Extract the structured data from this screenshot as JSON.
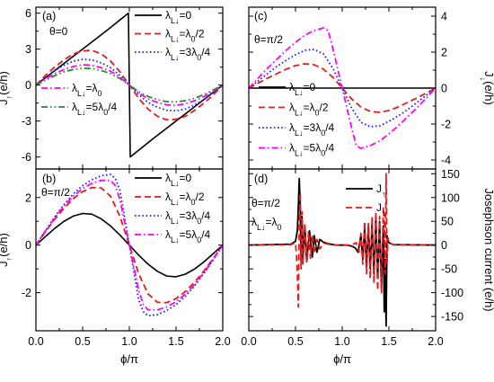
{
  "chart_data": [
    {
      "type": "line",
      "panel_label": "(a)",
      "annotation": [
        "θ=0"
      ],
      "ylabel": "J↑(e/h)",
      "xlim": [
        0,
        2
      ],
      "ylim": [
        -7,
        6.5
      ],
      "xticks": [
        0,
        0.5,
        1,
        1.5,
        2
      ],
      "xtick_labels": [
        "",
        "",
        "",
        "",
        ""
      ],
      "yticks": [
        -6,
        -3,
        0,
        3,
        6
      ],
      "ytick_labels": [
        "-6",
        "-3",
        "0",
        "3",
        "6"
      ],
      "legend": "top-right + lower-left",
      "series": [
        {
          "name": "λL↓=0",
          "color": "#000000",
          "style": "solid",
          "x": [
            0,
            0.25,
            0.5,
            0.75,
            0.99,
            1.01,
            1.25,
            1.5,
            1.75,
            2.0
          ],
          "y": [
            0,
            1.5,
            3.0,
            4.5,
            6.0,
            -6.0,
            -4.5,
            -3.0,
            -1.5,
            0
          ]
        },
        {
          "name": "λL↓=λ0/2",
          "color": "#e41a1c",
          "style": "dash",
          "x": [
            0,
            0.1,
            0.2,
            0.3,
            0.4,
            0.5,
            0.6,
            0.7,
            0.8,
            0.9,
            1.0,
            1.1,
            1.2,
            1.3,
            1.4,
            1.5,
            1.6,
            1.7,
            1.8,
            1.9,
            2.0
          ],
          "y": [
            0,
            0.8,
            1.5,
            2.1,
            2.6,
            2.85,
            2.9,
            2.6,
            2.0,
            1.1,
            0,
            -1.1,
            -2.0,
            -2.6,
            -2.9,
            -2.85,
            -2.6,
            -2.1,
            -1.5,
            -0.8,
            0
          ]
        },
        {
          "name": "λL↓=3λ0/4",
          "color": "#1f1fff",
          "style": "dot",
          "x": [
            0,
            0.1,
            0.2,
            0.3,
            0.4,
            0.5,
            0.6,
            0.7,
            0.8,
            0.9,
            1.0,
            1.1,
            1.2,
            1.3,
            1.4,
            1.5,
            1.6,
            1.7,
            1.8,
            1.9,
            2.0
          ],
          "y": [
            0,
            0.6,
            1.2,
            1.65,
            2.0,
            2.15,
            2.1,
            1.85,
            1.45,
            0.8,
            0,
            -0.8,
            -1.45,
            -1.85,
            -2.1,
            -2.15,
            -2.0,
            -1.65,
            -1.2,
            -0.6,
            0
          ]
        },
        {
          "name": "λL↓=λ0",
          "color": "#ff00ff",
          "style": "dashdot",
          "x": [
            0,
            0.1,
            0.2,
            0.3,
            0.4,
            0.5,
            0.6,
            0.7,
            0.8,
            0.9,
            1.0,
            1.1,
            1.2,
            1.3,
            1.4,
            1.5,
            1.6,
            1.7,
            1.8,
            1.9,
            2.0
          ],
          "y": [
            0,
            0.5,
            0.95,
            1.3,
            1.55,
            1.7,
            1.65,
            1.45,
            1.15,
            0.65,
            0,
            -0.65,
            -1.15,
            -1.45,
            -1.65,
            -1.7,
            -1.55,
            -1.3,
            -0.95,
            -0.5,
            0
          ]
        },
        {
          "name": "λL↓=5λ0/4",
          "color": "#2a8a2a",
          "style": "dashdotdot",
          "x": [
            0,
            0.1,
            0.2,
            0.3,
            0.4,
            0.5,
            0.6,
            0.7,
            0.8,
            0.9,
            1.0,
            1.1,
            1.2,
            1.3,
            1.4,
            1.5,
            1.6,
            1.7,
            1.8,
            1.9,
            2.0
          ],
          "y": [
            0,
            0.4,
            0.78,
            1.1,
            1.3,
            1.4,
            1.38,
            1.22,
            0.95,
            0.55,
            0,
            -0.55,
            -0.95,
            -1.22,
            -1.38,
            -1.4,
            -1.3,
            -1.1,
            -0.78,
            -0.4,
            0
          ]
        }
      ]
    },
    {
      "type": "line",
      "panel_label": "(c)",
      "annotation": [
        "θ=π/2"
      ],
      "ylabel": "J↓(e/h)",
      "xlim": [
        0,
        2
      ],
      "ylim": [
        -4.5,
        4.5
      ],
      "xticks": [
        0,
        0.5,
        1,
        1.5,
        2
      ],
      "xtick_labels": [
        "",
        "",
        "",
        "",
        ""
      ],
      "yticks": [
        -4,
        -2,
        0,
        2,
        4
      ],
      "ytick_labels": [
        "-4",
        "-2",
        "0",
        "2",
        "4"
      ],
      "legend": "lower-left",
      "series": [
        {
          "name": "λL↓=0",
          "color": "#000000",
          "style": "solid",
          "x": [
            0,
            2
          ],
          "y": [
            0,
            0
          ]
        },
        {
          "name": "λL↓=λ0/2",
          "color": "#e41a1c",
          "style": "dash",
          "x": [
            0,
            0.1,
            0.2,
            0.3,
            0.4,
            0.5,
            0.6,
            0.7,
            0.8,
            0.9,
            1.0,
            1.1,
            1.2,
            1.3,
            1.4,
            1.5,
            1.6,
            1.7,
            1.8,
            1.9,
            2.0
          ],
          "y": [
            0,
            0.28,
            0.55,
            0.8,
            1.05,
            1.25,
            1.35,
            1.3,
            1.05,
            0.6,
            0,
            -0.6,
            -1.05,
            -1.3,
            -1.35,
            -1.25,
            -1.05,
            -0.8,
            -0.55,
            -0.28,
            0
          ]
        },
        {
          "name": "λL↓=3λ0/4",
          "color": "#1f1fff",
          "style": "dot",
          "x": [
            0,
            0.1,
            0.2,
            0.3,
            0.4,
            0.5,
            0.6,
            0.7,
            0.8,
            0.9,
            1.0,
            1.1,
            1.2,
            1.3,
            1.4,
            1.5,
            1.6,
            1.7,
            1.8,
            1.9,
            2.0
          ],
          "y": [
            0,
            0.4,
            0.8,
            1.2,
            1.55,
            1.85,
            2.1,
            2.15,
            1.9,
            1.1,
            0,
            -1.1,
            -1.9,
            -2.15,
            -2.1,
            -1.85,
            -1.55,
            -1.2,
            -0.8,
            -0.4,
            0
          ]
        },
        {
          "name": "λL↓=5λ0/4",
          "color": "#ff00ff",
          "style": "dashdot",
          "x": [
            0,
            0.1,
            0.2,
            0.3,
            0.4,
            0.5,
            0.6,
            0.7,
            0.8,
            0.85,
            0.9,
            1.0,
            1.1,
            1.15,
            1.2,
            1.3,
            1.4,
            1.5,
            1.6,
            1.7,
            1.8,
            1.9,
            2.0
          ],
          "y": [
            0,
            0.55,
            1.1,
            1.6,
            2.1,
            2.55,
            2.95,
            3.2,
            3.35,
            3.2,
            2.2,
            0,
            -2.2,
            -3.2,
            -3.35,
            -3.2,
            -2.95,
            -2.55,
            -2.1,
            -1.6,
            -1.1,
            -0.55,
            0
          ]
        }
      ]
    },
    {
      "type": "line",
      "panel_label": "(b)",
      "annotation": [
        "θ=π/2"
      ],
      "ylabel": "J↑(e/h)",
      "xlim": [
        0,
        2
      ],
      "ylim": [
        -3.6,
        3.2
      ],
      "xticks": [
        0,
        0.5,
        1,
        1.5,
        2
      ],
      "xtick_labels": [
        "0.0",
        "0.5",
        "1.0",
        "1.5",
        "2.0"
      ],
      "yticks": [
        -2,
        0,
        2
      ],
      "ytick_labels": [
        "-2",
        "0",
        "2"
      ],
      "xlabel": "ϕ/π",
      "legend": "top-right",
      "series": [
        {
          "name": "λL↓=0",
          "color": "#000000",
          "style": "solid",
          "x": [
            0,
            0.1,
            0.2,
            0.3,
            0.4,
            0.5,
            0.6,
            0.7,
            0.8,
            0.9,
            1.0,
            1.1,
            1.2,
            1.3,
            1.4,
            1.5,
            1.6,
            1.7,
            1.8,
            1.9,
            2.0
          ],
          "y": [
            0,
            0.35,
            0.7,
            1.0,
            1.22,
            1.33,
            1.3,
            1.1,
            0.8,
            0.42,
            0,
            -0.42,
            -0.8,
            -1.1,
            -1.3,
            -1.33,
            -1.22,
            -1.0,
            -0.7,
            -0.35,
            0
          ]
        },
        {
          "name": "λL↓=λ0/2",
          "color": "#e41a1c",
          "style": "dash",
          "x": [
            0,
            0.1,
            0.2,
            0.3,
            0.4,
            0.5,
            0.6,
            0.7,
            0.8,
            0.9,
            1.0,
            1.1,
            1.2,
            1.3,
            1.4,
            1.5,
            1.6,
            1.7,
            1.8,
            1.9,
            2.0
          ],
          "y": [
            0,
            0.55,
            1.08,
            1.55,
            1.95,
            2.25,
            2.42,
            2.4,
            2.05,
            1.2,
            0,
            -1.2,
            -2.05,
            -2.4,
            -2.42,
            -2.25,
            -1.95,
            -1.55,
            -1.08,
            -0.55,
            0
          ]
        },
        {
          "name": "λL↓=3λ0/4",
          "color": "#1f1fff",
          "style": "dot",
          "x": [
            0,
            0.1,
            0.2,
            0.3,
            0.4,
            0.5,
            0.6,
            0.7,
            0.8,
            0.85,
            0.9,
            1.0,
            1.1,
            1.15,
            1.2,
            1.3,
            1.4,
            1.5,
            1.6,
            1.7,
            1.8,
            1.9,
            2.0
          ],
          "y": [
            0,
            0.6,
            1.18,
            1.7,
            2.15,
            2.5,
            2.75,
            2.92,
            2.97,
            2.8,
            2.3,
            0,
            -2.3,
            -2.8,
            -2.97,
            -2.92,
            -2.75,
            -2.5,
            -2.15,
            -1.7,
            -1.18,
            -0.6,
            0
          ]
        },
        {
          "name": "λL↓=5λ0/4",
          "color": "#ff00ff",
          "style": "dashdot",
          "x": [
            0,
            0.1,
            0.2,
            0.3,
            0.4,
            0.5,
            0.6,
            0.7,
            0.8,
            0.85,
            0.9,
            1.0,
            1.1,
            1.15,
            1.2,
            1.3,
            1.4,
            1.5,
            1.6,
            1.7,
            1.8,
            1.9,
            2.0
          ],
          "y": [
            0,
            0.58,
            1.14,
            1.65,
            2.05,
            2.38,
            2.6,
            2.72,
            2.72,
            2.5,
            1.9,
            0,
            -1.9,
            -2.5,
            -2.72,
            -2.72,
            -2.6,
            -2.38,
            -2.05,
            -1.65,
            -1.14,
            -0.58,
            0
          ]
        }
      ]
    },
    {
      "type": "line",
      "panel_label": "(d)",
      "annotation": [
        "θ=π/2",
        "λL↓=λ0"
      ],
      "ylabel": "Josephson current (e/h)",
      "xlim": [
        0,
        2
      ],
      "ylim": [
        -180,
        160
      ],
      "xticks": [
        0,
        0.5,
        1,
        1.5,
        2
      ],
      "xtick_labels": [
        "0.0",
        "0.5",
        "1.0",
        "1.5",
        "2.0"
      ],
      "yticks": [
        -150,
        -100,
        -50,
        0,
        50,
        100,
        150
      ],
      "ytick_labels": [
        "-150",
        "-100",
        "-50",
        "0",
        "50",
        "100",
        "150"
      ],
      "xlabel": "ϕ/π",
      "legend": "top-right",
      "series": [
        {
          "name": "J↑",
          "color": "#000000",
          "style": "solid",
          "x": [
            0,
            0.45,
            0.5,
            0.52,
            0.53,
            0.54,
            0.55,
            0.56,
            0.57,
            0.58,
            0.6,
            0.62,
            0.65,
            0.68,
            0.7,
            0.73,
            0.76,
            0.8,
            0.85,
            0.9,
            0.95,
            1.0,
            1.05,
            1.1,
            1.14,
            1.17,
            1.2,
            1.22,
            1.24,
            1.26,
            1.28,
            1.3,
            1.32,
            1.34,
            1.36,
            1.38,
            1.4,
            1.42,
            1.44,
            1.45,
            1.46,
            1.47,
            1.48,
            1.49,
            1.5,
            1.55,
            2.0
          ],
          "y": [
            0,
            2,
            8,
            30,
            80,
            140,
            90,
            -40,
            60,
            -30,
            40,
            -35,
            30,
            -25,
            20,
            -15,
            12,
            6,
            3,
            1,
            0,
            0,
            0,
            -2,
            -6,
            -15,
            20,
            -30,
            35,
            -45,
            40,
            -50,
            45,
            -60,
            55,
            -70,
            50,
            -90,
            40,
            -140,
            -30,
            -170,
            20,
            10,
            5,
            1,
            0
          ]
        },
        {
          "name": "J↓",
          "color": "#e41a1c",
          "style": "dash",
          "x": [
            0,
            0.45,
            0.5,
            0.51,
            0.52,
            0.53,
            0.54,
            0.55,
            0.56,
            0.57,
            0.58,
            0.6,
            0.62,
            0.64,
            0.66,
            0.68,
            0.7,
            0.73,
            0.76,
            0.8,
            0.85,
            0.9,
            1.0,
            1.1,
            1.15,
            1.18,
            1.2,
            1.22,
            1.24,
            1.26,
            1.28,
            1.3,
            1.32,
            1.34,
            1.36,
            1.38,
            1.4,
            1.42,
            1.44,
            1.45,
            1.46,
            1.47,
            1.48,
            1.49,
            1.5,
            1.55,
            2.0
          ],
          "y": [
            0,
            1,
            5,
            -20,
            -60,
            -130,
            40,
            110,
            -50,
            70,
            -40,
            45,
            -35,
            30,
            -28,
            22,
            -18,
            12,
            -8,
            4,
            2,
            0,
            0,
            0,
            5,
            -15,
            25,
            -40,
            50,
            -60,
            45,
            -70,
            60,
            -80,
            70,
            -95,
            60,
            -100,
            80,
            60,
            -60,
            150,
            -40,
            15,
            4,
            1,
            0
          ]
        }
      ]
    }
  ],
  "legend_sets": {
    "a_top": [
      "λL↓=0",
      "λL↓=λ0/2",
      "λL↓=3λ0/4"
    ],
    "a_bottom": [
      "λL↓=λ0",
      "λL↓=5λ0/4"
    ]
  }
}
